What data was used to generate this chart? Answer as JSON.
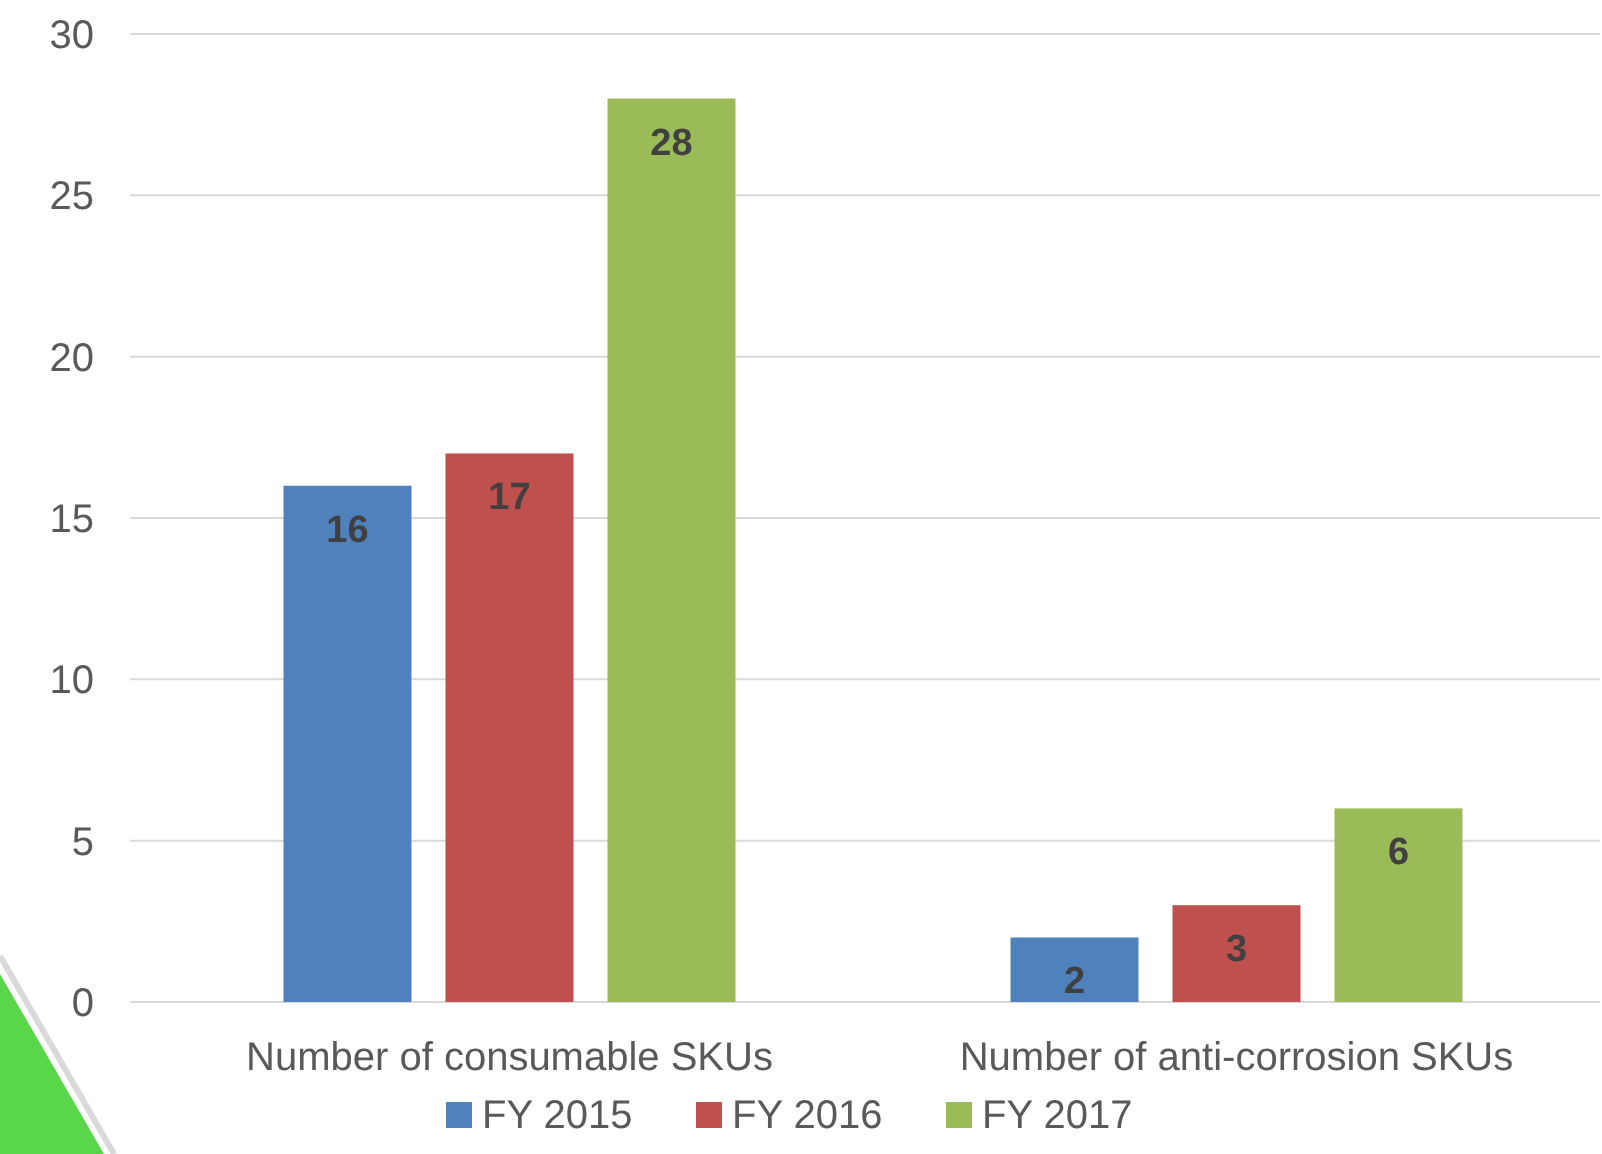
{
  "chart_data": {
    "type": "bar",
    "categories": [
      "Number of consumable SKUs",
      "Number of anti-corrosion SKUs"
    ],
    "series": [
      {
        "name": "FY 2015",
        "color": "#4f81bd",
        "values": [
          16,
          2
        ]
      },
      {
        "name": "FY 2016",
        "color": "#c0504d",
        "values": [
          17,
          3
        ]
      },
      {
        "name": "FY 2017",
        "color": "#9bbb59",
        "values": [
          28,
          6
        ]
      }
    ],
    "ylim": [
      0,
      30
    ],
    "yticks": [
      0,
      5,
      10,
      15,
      20,
      25,
      30
    ],
    "grid": "y",
    "legend": "bottom",
    "data_labels": true
  }
}
